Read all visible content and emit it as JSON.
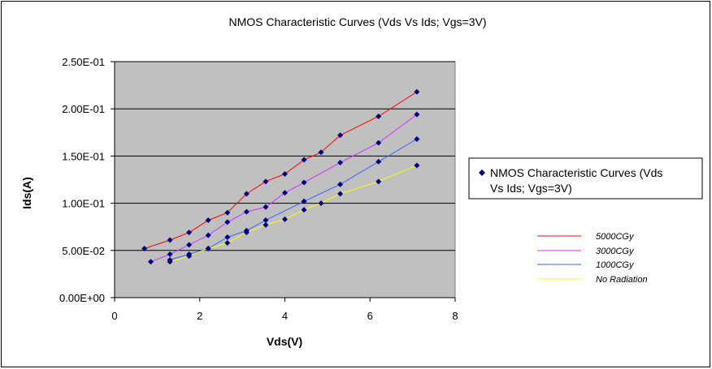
{
  "chart_data": {
    "type": "line",
    "title": "NMOS Characteristic Curves (Vds Vs Ids; Vgs=3V)",
    "xlabel": "Vds(V)",
    "ylabel": "Ids(A)",
    "xlim": [
      0,
      8
    ],
    "ylim": [
      0,
      0.25
    ],
    "x_ticks": [
      "0",
      "2",
      "4",
      "6",
      "8"
    ],
    "y_ticks": [
      "0.00E+00",
      "5.00E-02",
      "1.00E-01",
      "1.50E-01",
      "2.00E-01",
      "2.50E-01"
    ],
    "grid": "horizontal",
    "plot_background": "#c0c0c0",
    "marker_legend": {
      "label_line1": "NMOS Characteristic Curves (Vds",
      "label_line2": "Vs Ids; Vgs=3V)",
      "marker_color": "#000080"
    },
    "series": [
      {
        "name": "5000CGy",
        "color": "#ff0000",
        "points": [
          [
            0.7,
            0.052
          ],
          [
            1.3,
            0.061
          ],
          [
            1.75,
            0.069
          ],
          [
            2.2,
            0.082
          ],
          [
            2.65,
            0.09
          ],
          [
            3.1,
            0.11
          ],
          [
            3.55,
            0.123
          ],
          [
            4.0,
            0.131
          ],
          [
            4.45,
            0.146
          ],
          [
            4.85,
            0.154
          ],
          [
            5.3,
            0.172
          ],
          [
            6.2,
            0.192
          ],
          [
            7.1,
            0.218
          ]
        ]
      },
      {
        "name": "3000CGy",
        "color": "#cc33ff",
        "points": [
          [
            0.85,
            0.038
          ],
          [
            1.3,
            0.046
          ],
          [
            1.75,
            0.056
          ],
          [
            2.2,
            0.066
          ],
          [
            2.65,
            0.08
          ],
          [
            3.1,
            0.091
          ],
          [
            3.55,
            0.096
          ],
          [
            4.0,
            0.111
          ],
          [
            4.45,
            0.122
          ],
          [
            5.3,
            0.143
          ],
          [
            6.2,
            0.164
          ],
          [
            7.1,
            0.194
          ]
        ]
      },
      {
        "name": "1000CGy",
        "color": "#3366ff",
        "points": [
          [
            1.3,
            0.04
          ],
          [
            1.75,
            0.046
          ],
          [
            2.2,
            0.052
          ],
          [
            2.65,
            0.064
          ],
          [
            3.1,
            0.071
          ],
          [
            3.55,
            0.082
          ],
          [
            4.45,
            0.102
          ],
          [
            5.3,
            0.12
          ],
          [
            6.2,
            0.144
          ],
          [
            7.1,
            0.168
          ]
        ]
      },
      {
        "name": "No Radiation",
        "color": "#ffff00",
        "points": [
          [
            1.3,
            0.038
          ],
          [
            1.75,
            0.044
          ],
          [
            2.2,
            0.052
          ],
          [
            2.65,
            0.058
          ],
          [
            3.1,
            0.069
          ],
          [
            3.55,
            0.077
          ],
          [
            4.0,
            0.083
          ],
          [
            4.45,
            0.093
          ],
          [
            4.85,
            0.1
          ],
          [
            5.3,
            0.11
          ],
          [
            6.2,
            0.123
          ],
          [
            7.1,
            0.14
          ]
        ]
      }
    ]
  }
}
